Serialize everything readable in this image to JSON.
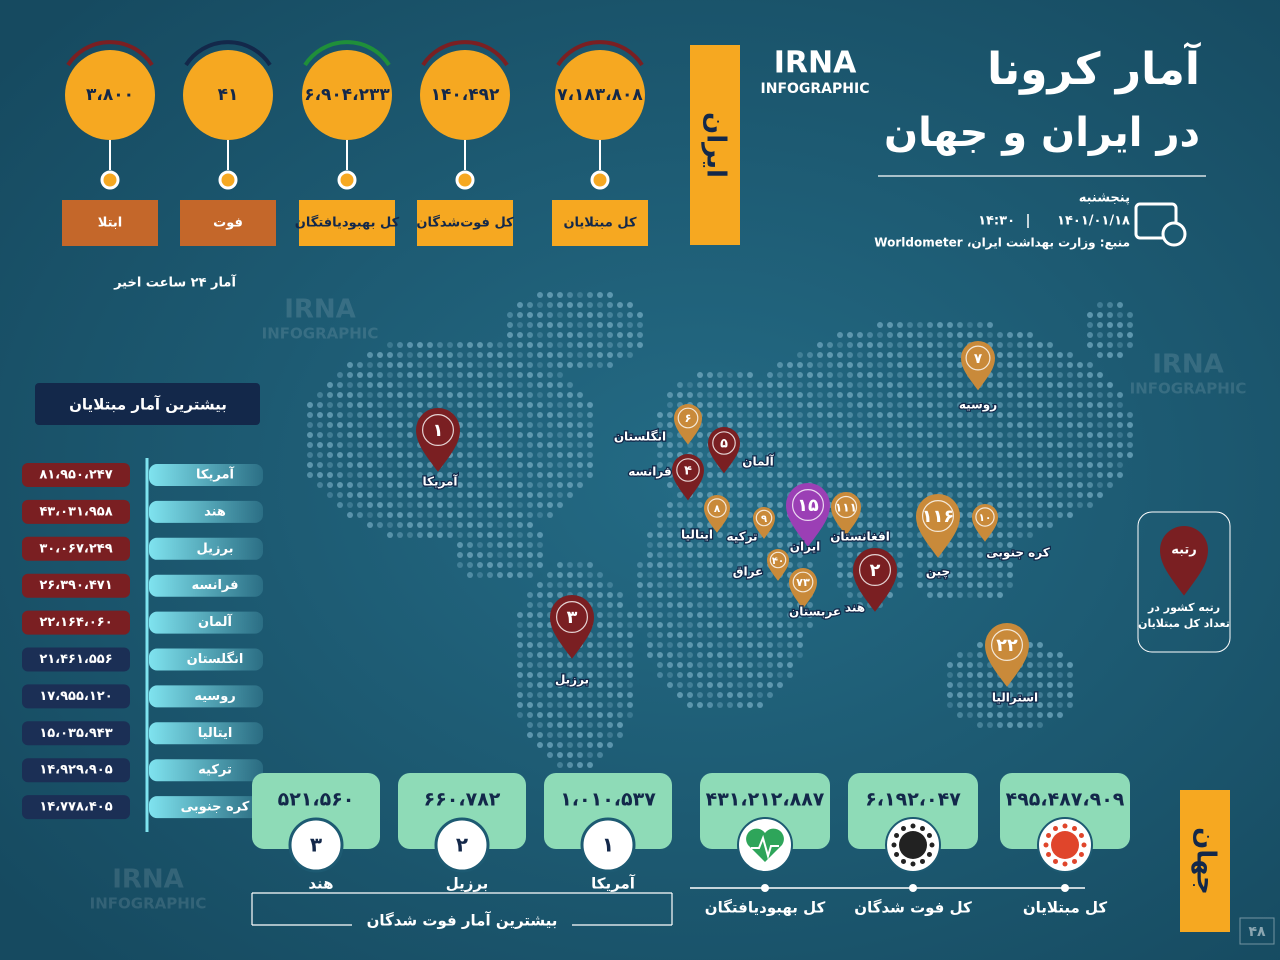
{
  "header": {
    "title_line1": "آمار کرونا",
    "title_line2": "در ایران و جهان",
    "logo": "IRNA",
    "logo_sub": "INFOGRAPHIC",
    "weekday": "پنجشنبه",
    "date": "۱۴۰۱/۰۱/۱۸",
    "time": "۱۴:۳۰",
    "source": "منبع: وزارت بهداشت ایران، Worldometer"
  },
  "iran": {
    "label": "ایران",
    "note": "آمار ۲۴ ساعت اخیر",
    "stats": [
      {
        "label": "کل مبتلایان",
        "value": "۷،۱۸۳،۸۰۸"
      },
      {
        "label": "کل فوت‌شدگان",
        "value": "۱۴۰،۴۹۲"
      },
      {
        "label": "کل بهبودیافتگان",
        "value": "۶،۹۰۴،۲۳۳"
      },
      {
        "label": "فوت",
        "value": "۴۱"
      },
      {
        "label": "ابتلا",
        "value": "۳،۸۰۰"
      }
    ]
  },
  "top_infected": {
    "title": "بیشترین آمار مبتلایان",
    "rows": [
      {
        "country": "آمریکا",
        "value": "۸۱،۹۵۰،۲۴۷"
      },
      {
        "country": "هند",
        "value": "۴۳،۰۳۱،۹۵۸"
      },
      {
        "country": "برزیل",
        "value": "۳۰،۰۶۷،۲۴۹"
      },
      {
        "country": "فرانسه",
        "value": "۲۶،۳۹۰،۴۷۱"
      },
      {
        "country": "آلمان",
        "value": "۲۲،۱۶۴،۰۶۰"
      },
      {
        "country": "انگلستان",
        "value": "۲۱،۴۶۱،۵۵۶"
      },
      {
        "country": "روسیه",
        "value": "۱۷،۹۵۵،۱۲۰"
      },
      {
        "country": "ایتالیا",
        "value": "۱۵،۰۳۵،۹۴۳"
      },
      {
        "country": "ترکیه",
        "value": "۱۴،۹۲۹،۹۰۵"
      },
      {
        "country": "کره جنوبی",
        "value": "۱۴،۷۷۸،۴۰۵"
      }
    ]
  },
  "map": {
    "legend_rank": "رتبه",
    "legend_text": "رتبه کشور در تعداد کل مبتلایان",
    "pins": [
      {
        "rank": "۱",
        "country": "آمریکا"
      },
      {
        "rank": "۳",
        "country": "برزیل"
      },
      {
        "rank": "۶",
        "country": "انگلستان"
      },
      {
        "rank": "۵",
        "country": "آلمان"
      },
      {
        "rank": "۴",
        "country": "فرانسه"
      },
      {
        "rank": "۸",
        "country": "ایتالیا"
      },
      {
        "rank": "۹",
        "country": "ترکیه"
      },
      {
        "rank": "۱۵",
        "country": "ایران"
      },
      {
        "rank": "۱۱۱",
        "country": "افغانستان"
      },
      {
        "rank": "۴۰",
        "country": "عراق"
      },
      {
        "rank": "۷۳",
        "country": "عربستان"
      },
      {
        "rank": "۲",
        "country": "هند"
      },
      {
        "rank": "۱۱۶",
        "country": "چین"
      },
      {
        "rank": "۱۰",
        "country": "کره جنوبی"
      },
      {
        "rank": "۷",
        "country": "روسیه"
      },
      {
        "rank": "۲۲",
        "country": "استرالیا"
      }
    ]
  },
  "world": {
    "label": "جهان",
    "stats": [
      {
        "label": "کل مبتلایان",
        "value": "۴۹۵،۴۸۷،۹۰۹"
      },
      {
        "label": "کل فوت شدگان",
        "value": "۶،۱۹۲،۰۴۷"
      },
      {
        "label": "کل بهبودیافتگان",
        "value": "۴۳۱،۲۱۲،۸۸۷"
      }
    ],
    "top_deaths": {
      "title": "بیشترین آمار فوت شدگان",
      "rows": [
        {
          "rank": "۱",
          "country": "آمریکا",
          "value": "۱،۰۱۰،۵۳۷"
        },
        {
          "rank": "۲",
          "country": "برزیل",
          "value": "۶۶۰،۷۸۲"
        },
        {
          "rank": "۳",
          "country": "هند",
          "value": "۵۲۱،۵۶۰"
        }
      ]
    }
  },
  "page_number": "۴۸"
}
